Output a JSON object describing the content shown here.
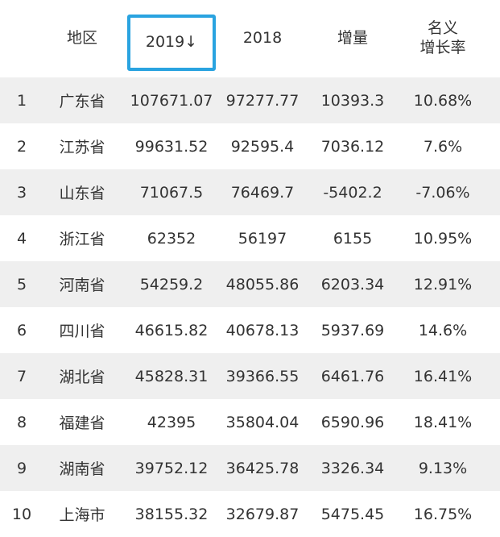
{
  "table": {
    "headers": {
      "rank": "",
      "region": "地区",
      "y2019": "2019↓",
      "y2018": "2018",
      "increase": "增量",
      "rate_line1": "名义",
      "rate_line2": "增长率"
    },
    "rows": [
      {
        "rank": "1",
        "region": "广东省",
        "y2019": "107671.07",
        "y2018": "97277.77",
        "increase": "10393.3",
        "rate": "10.68%"
      },
      {
        "rank": "2",
        "region": "江苏省",
        "y2019": "99631.52",
        "y2018": "92595.4",
        "increase": "7036.12",
        "rate": "7.6%"
      },
      {
        "rank": "3",
        "region": "山东省",
        "y2019": "71067.5",
        "y2018": "76469.7",
        "increase": "-5402.2",
        "rate": "-7.06%"
      },
      {
        "rank": "4",
        "region": "浙江省",
        "y2019": "62352",
        "y2018": "56197",
        "increase": "6155",
        "rate": "10.95%"
      },
      {
        "rank": "5",
        "region": "河南省",
        "y2019": "54259.2",
        "y2018": "48055.86",
        "increase": "6203.34",
        "rate": "12.91%"
      },
      {
        "rank": "6",
        "region": "四川省",
        "y2019": "46615.82",
        "y2018": "40678.13",
        "increase": "5937.69",
        "rate": "14.6%"
      },
      {
        "rank": "7",
        "region": "湖北省",
        "y2019": "45828.31",
        "y2018": "39366.55",
        "increase": "6461.76",
        "rate": "16.41%"
      },
      {
        "rank": "8",
        "region": "福建省",
        "y2019": "42395",
        "y2018": "35804.04",
        "increase": "6590.96",
        "rate": "18.41%"
      },
      {
        "rank": "9",
        "region": "湖南省",
        "y2019": "39752.12",
        "y2018": "36425.78",
        "increase": "3326.34",
        "rate": "9.13%"
      },
      {
        "rank": "10",
        "region": "上海市",
        "y2019": "38155.32",
        "y2018": "32679.87",
        "increase": "5475.45",
        "rate": "16.75%"
      }
    ]
  },
  "colors": {
    "sort_highlight": "#29a3e0",
    "row_shade": "#efefef",
    "text": "#333333"
  }
}
